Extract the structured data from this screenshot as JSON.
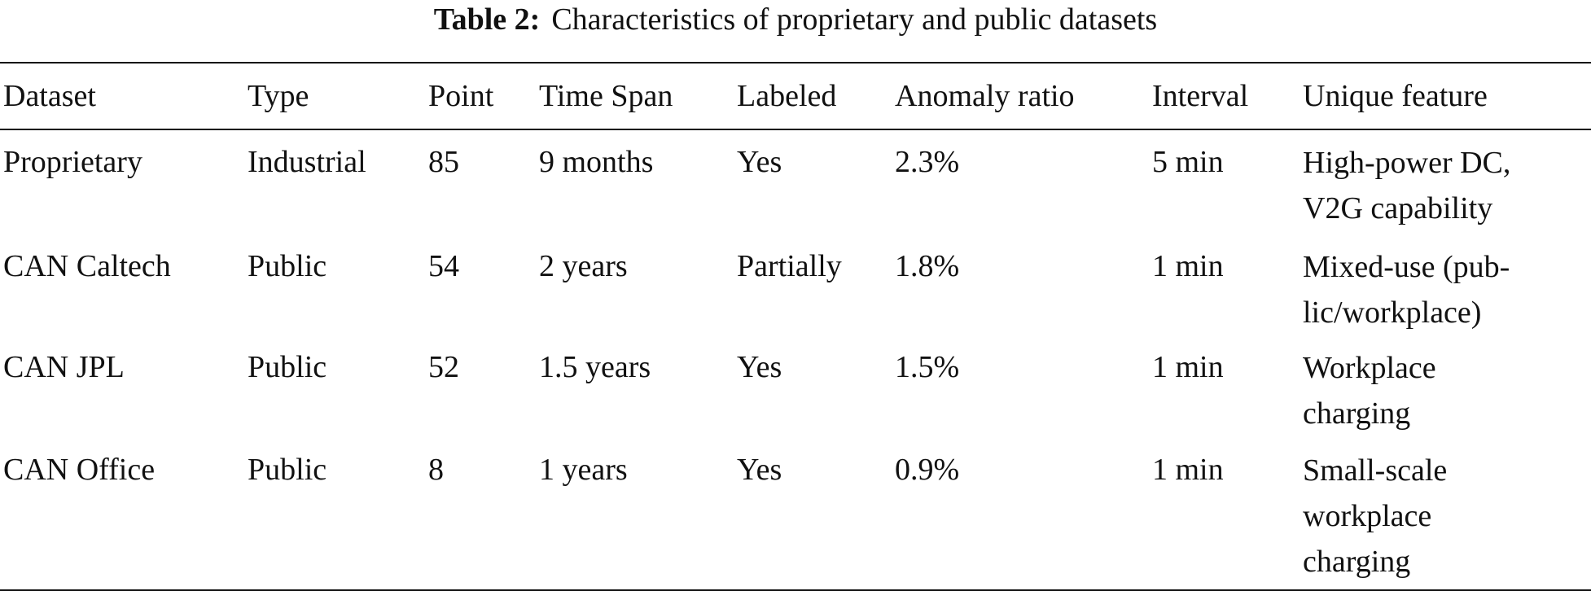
{
  "caption": {
    "label": "Table 2:",
    "text": "Characteristics of proprietary and public datasets"
  },
  "table": {
    "headers": [
      "Dataset",
      "Type",
      "Point",
      "Time Span",
      "Labeled",
      "Anomaly ratio",
      "Interval",
      "Unique feature"
    ],
    "rows": [
      {
        "dataset": "Proprietary",
        "type": "Industrial",
        "point": "85",
        "time_span": "9 months",
        "labeled": "Yes",
        "anomaly_ratio": "2.3%",
        "interval": "5 min",
        "unique_feature": [
          "High-power DC,",
          "V2G capability"
        ]
      },
      {
        "dataset": "CAN Caltech",
        "type": "Public",
        "point": "54",
        "time_span": "2 years",
        "labeled": "Partially",
        "anomaly_ratio": "1.8%",
        "interval": "1 min",
        "unique_feature": [
          "Mixed-use (pub-",
          "lic/workplace)"
        ]
      },
      {
        "dataset": "CAN JPL",
        "type": "Public",
        "point": "52",
        "time_span": "1.5 years",
        "labeled": "Yes",
        "anomaly_ratio": "1.5%",
        "interval": "1 min",
        "unique_feature": [
          "Workplace",
          "charging"
        ]
      },
      {
        "dataset": "CAN Office",
        "type": "Public",
        "point": "8",
        "time_span": "1 years",
        "labeled": "Yes",
        "anomaly_ratio": "0.9%",
        "interval": "1 min",
        "unique_feature": [
          "Small-scale",
          "workplace",
          "charging"
        ]
      }
    ]
  }
}
